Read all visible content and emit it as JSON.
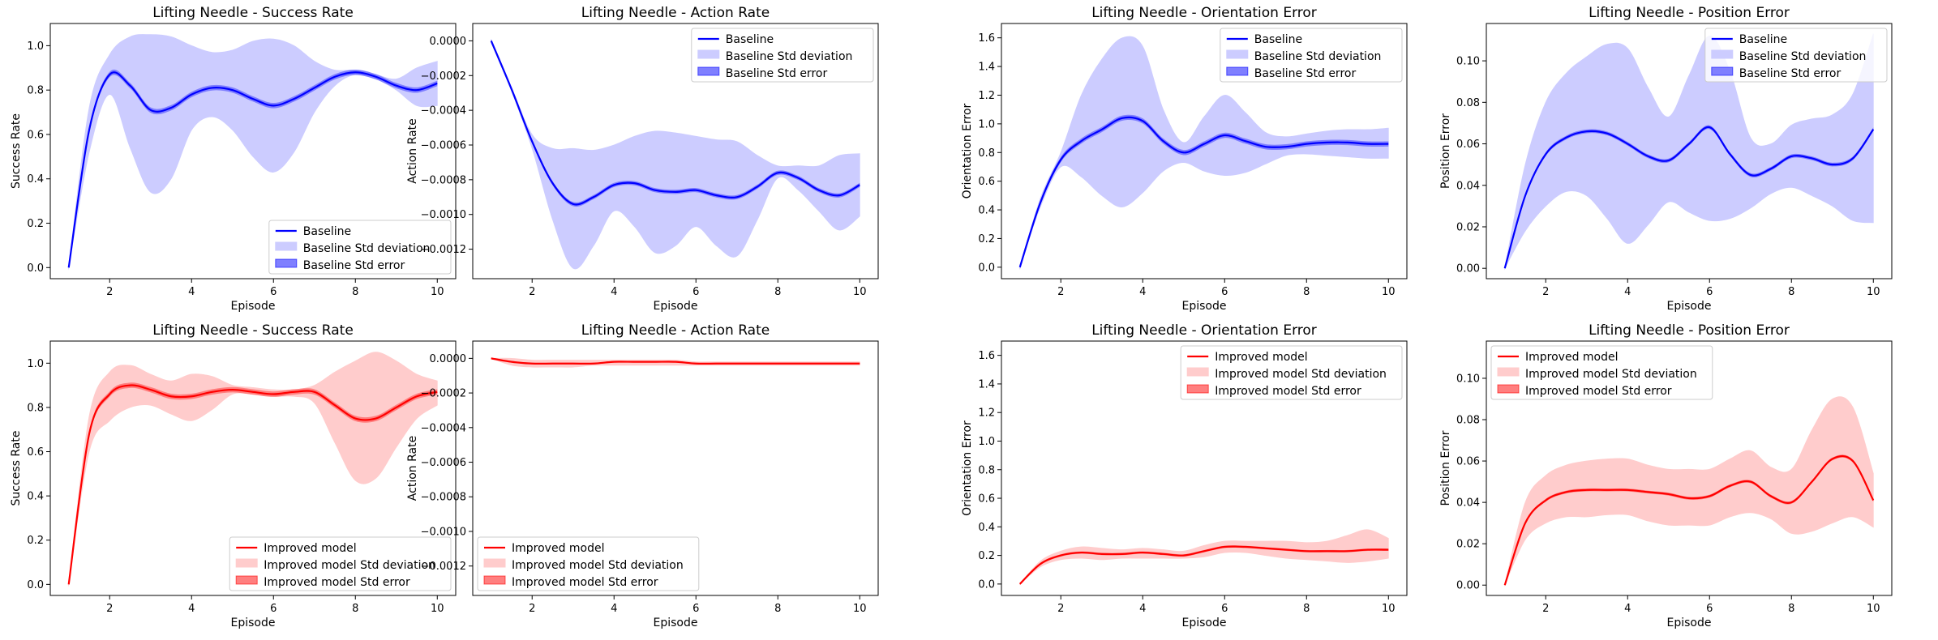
{
  "colors": {
    "baseline": "#0000ff",
    "baseline_std_dev": "#ccccff",
    "baseline_std_err": "#7f7fff",
    "improved": "#ff0000",
    "improved_std_dev": "#ffcccc",
    "improved_std_err": "#ff7f7f"
  },
  "chart_data": [
    {
      "type": "line",
      "panel": "top-1",
      "title": "Lifting Needle - Success Rate",
      "xlabel": "Episode",
      "ylabel": "Success Rate",
      "xlim": [
        0.55,
        10.45
      ],
      "ylim": [
        -0.05,
        1.1
      ],
      "xticks": [
        2,
        4,
        6,
        8,
        10
      ],
      "xtick_labels": [
        "2",
        "4",
        "6",
        "8",
        "10"
      ],
      "yticks": [
        0,
        0.2,
        0.4,
        0.6,
        0.8,
        1.0
      ],
      "ytick_labels": [
        "0.0",
        "0.2",
        "0.4",
        "0.6",
        "0.8",
        "1.0"
      ],
      "color_key": "baseline",
      "legend_loc": "lower-right",
      "legend": [
        "Baseline",
        "Baseline Std deviation",
        "Baseline Std error"
      ],
      "x": [
        1,
        1.5,
        2,
        2.5,
        3,
        3.5,
        4,
        4.5,
        5,
        5.5,
        6,
        6.5,
        7,
        7.5,
        8,
        8.5,
        9,
        9.5,
        10
      ],
      "mean": [
        0.0,
        0.62,
        0.87,
        0.82,
        0.71,
        0.72,
        0.78,
        0.81,
        0.8,
        0.76,
        0.73,
        0.76,
        0.81,
        0.86,
        0.88,
        0.86,
        0.82,
        0.8,
        0.83
      ],
      "std_dev_lower": [
        0.0,
        0.52,
        0.78,
        0.54,
        0.34,
        0.4,
        0.62,
        0.68,
        0.62,
        0.5,
        0.43,
        0.52,
        0.7,
        0.82,
        0.87,
        0.85,
        0.8,
        0.73,
        0.73
      ],
      "std_dev_upper": [
        0.0,
        0.72,
        0.96,
        1.04,
        1.05,
        1.04,
        1.0,
        0.97,
        0.98,
        1.02,
        1.03,
        1.0,
        0.93,
        0.89,
        0.89,
        0.87,
        0.85,
        0.9,
        0.93
      ],
      "std_err": 0.012
    },
    {
      "type": "line",
      "panel": "top-2",
      "title": "Lifting Needle - Action Rate",
      "xlabel": "Episode",
      "ylabel": "Action Rate",
      "xlim": [
        0.55,
        10.45
      ],
      "ylim": [
        -0.00137,
        0.0001
      ],
      "xticks": [
        2,
        4,
        6,
        8,
        10
      ],
      "xtick_labels": [
        "2",
        "4",
        "6",
        "8",
        "10"
      ],
      "yticks": [
        0,
        -0.0002,
        -0.0004,
        -0.0006,
        -0.0008,
        -0.001,
        -0.0012
      ],
      "ytick_labels": [
        "0.0000",
        "−0.0002",
        "−0.0004",
        "−0.0006",
        "−0.0008",
        "−0.0010",
        "−0.0012"
      ],
      "color_key": "baseline",
      "legend_loc": "upper-right",
      "legend": [
        "Baseline",
        "Baseline Std deviation",
        "Baseline Std error"
      ],
      "x": [
        1,
        1.5,
        2,
        2.5,
        3,
        3.5,
        4,
        4.5,
        5,
        5.5,
        6,
        6.5,
        7,
        7.5,
        8,
        8.5,
        9,
        9.5,
        10
      ],
      "mean": [
        0.0,
        -0.00028,
        -0.00058,
        -0.00082,
        -0.00094,
        -0.0009,
        -0.00083,
        -0.00082,
        -0.00086,
        -0.00087,
        -0.00086,
        -0.00089,
        -0.0009,
        -0.00084,
        -0.00076,
        -0.00079,
        -0.00086,
        -0.00089,
        -0.00083
      ],
      "std_dev_lower": [
        0.0,
        -0.00029,
        -0.00062,
        -0.00103,
        -0.00131,
        -0.00118,
        -0.00098,
        -0.00107,
        -0.00122,
        -0.00118,
        -0.00107,
        -0.00118,
        -0.00124,
        -0.00103,
        -0.00079,
        -0.00086,
        -0.00098,
        -0.00109,
        -0.00101
      ],
      "std_dev_upper": [
        0.0,
        -0.00027,
        -0.00054,
        -0.00062,
        -0.00062,
        -0.00063,
        -0.0006,
        -0.00055,
        -0.00052,
        -0.00053,
        -0.00055,
        -0.00057,
        -0.00058,
        -0.00066,
        -0.00072,
        -0.00072,
        -0.00072,
        -0.00066,
        -0.00065
      ],
      "std_err": 1.2e-05
    },
    {
      "type": "line",
      "panel": "top-3",
      "title": "Lifting Needle - Orientation Error",
      "xlabel": "Episode",
      "ylabel": "Orientation Error",
      "xlim": [
        0.55,
        10.45
      ],
      "ylim": [
        -0.08,
        1.7
      ],
      "xticks": [
        2,
        4,
        6,
        8,
        10
      ],
      "xtick_labels": [
        "2",
        "4",
        "6",
        "8",
        "10"
      ],
      "yticks": [
        0,
        0.2,
        0.4,
        0.6,
        0.8,
        1.0,
        1.2,
        1.4,
        1.6
      ],
      "ytick_labels": [
        "0.0",
        "0.2",
        "0.4",
        "0.6",
        "0.8",
        "1.0",
        "1.2",
        "1.4",
        "1.6"
      ],
      "color_key": "baseline",
      "legend_loc": "upper-right",
      "legend": [
        "Baseline",
        "Baseline Std deviation",
        "Baseline Std error"
      ],
      "x": [
        1,
        1.5,
        2,
        2.5,
        3,
        3.5,
        4,
        4.5,
        5,
        5.5,
        6,
        6.5,
        7,
        7.5,
        8,
        8.5,
        9,
        9.5,
        10
      ],
      "mean": [
        0.0,
        0.45,
        0.75,
        0.88,
        0.96,
        1.04,
        1.02,
        0.88,
        0.8,
        0.86,
        0.92,
        0.88,
        0.84,
        0.84,
        0.86,
        0.87,
        0.87,
        0.86,
        0.86
      ],
      "std_dev_lower": [
        0.0,
        0.42,
        0.7,
        0.63,
        0.5,
        0.42,
        0.52,
        0.67,
        0.73,
        0.67,
        0.64,
        0.66,
        0.72,
        0.78,
        0.79,
        0.78,
        0.77,
        0.76,
        0.76
      ],
      "std_dev_upper": [
        0.0,
        0.48,
        0.8,
        1.2,
        1.45,
        1.6,
        1.54,
        1.1,
        0.87,
        1.05,
        1.2,
        1.08,
        0.94,
        0.91,
        0.93,
        0.95,
        0.96,
        0.96,
        0.97
      ],
      "std_err": 0.018
    },
    {
      "type": "line",
      "panel": "top-4",
      "title": "Lifting Needle - Position Error",
      "xlabel": "Episode",
      "ylabel": "Position Error",
      "xlim": [
        0.55,
        10.45
      ],
      "ylim": [
        -0.005,
        0.118
      ],
      "xticks": [
        2,
        4,
        6,
        8,
        10
      ],
      "xtick_labels": [
        "2",
        "4",
        "6",
        "8",
        "10"
      ],
      "yticks": [
        0,
        0.02,
        0.04,
        0.06,
        0.08,
        0.1
      ],
      "ytick_labels": [
        "0.00",
        "0.02",
        "0.04",
        "0.06",
        "0.08",
        "0.10"
      ],
      "color_key": "baseline",
      "legend_loc": "upper-right",
      "legend": [
        "Baseline",
        "Baseline Std deviation",
        "Baseline Std error"
      ],
      "x": [
        1,
        1.5,
        2,
        2.5,
        3,
        3.5,
        4,
        4.5,
        5,
        5.5,
        6,
        6.5,
        7,
        7.5,
        8,
        8.5,
        9,
        9.5,
        10
      ],
      "mean": [
        0.0,
        0.035,
        0.055,
        0.063,
        0.066,
        0.065,
        0.06,
        0.054,
        0.052,
        0.06,
        0.068,
        0.055,
        0.045,
        0.048,
        0.054,
        0.053,
        0.05,
        0.053,
        0.067
      ],
      "std_dev_lower": [
        0.0,
        0.018,
        0.03,
        0.037,
        0.035,
        0.024,
        0.012,
        0.021,
        0.032,
        0.027,
        0.023,
        0.024,
        0.029,
        0.036,
        0.039,
        0.035,
        0.03,
        0.023,
        0.022
      ],
      "std_dev_upper": [
        0.0,
        0.05,
        0.08,
        0.094,
        0.102,
        0.108,
        0.106,
        0.087,
        0.073,
        0.093,
        0.112,
        0.095,
        0.063,
        0.06,
        0.069,
        0.072,
        0.074,
        0.084,
        0.113
      ],
      "std_err": 0.0009
    },
    {
      "type": "line",
      "panel": "bottom-1",
      "title": "Lifting Needle - Success Rate",
      "xlabel": "Episode",
      "ylabel": "Success Rate",
      "xlim": [
        0.55,
        10.45
      ],
      "ylim": [
        -0.05,
        1.1
      ],
      "xticks": [
        2,
        4,
        6,
        8,
        10
      ],
      "xtick_labels": [
        "2",
        "4",
        "6",
        "8",
        "10"
      ],
      "yticks": [
        0,
        0.2,
        0.4,
        0.6,
        0.8,
        1.0
      ],
      "ytick_labels": [
        "0.0",
        "0.2",
        "0.4",
        "0.6",
        "0.8",
        "1.0"
      ],
      "color_key": "improved",
      "legend_loc": "lower-right",
      "legend": [
        "Improved model",
        "Improved model Std deviation",
        "Improved model Std error"
      ],
      "x": [
        1,
        1.5,
        2,
        2.5,
        3,
        3.5,
        4,
        4.5,
        5,
        5.5,
        6,
        6.5,
        7,
        7.5,
        8,
        8.5,
        9,
        9.5,
        10
      ],
      "mean": [
        0.0,
        0.68,
        0.86,
        0.9,
        0.88,
        0.85,
        0.85,
        0.87,
        0.88,
        0.87,
        0.86,
        0.87,
        0.87,
        0.81,
        0.75,
        0.75,
        0.8,
        0.85,
        0.87
      ],
      "std_dev_lower": [
        0.0,
        0.6,
        0.74,
        0.8,
        0.81,
        0.77,
        0.74,
        0.79,
        0.86,
        0.86,
        0.85,
        0.85,
        0.82,
        0.64,
        0.47,
        0.48,
        0.62,
        0.75,
        0.81
      ],
      "std_dev_upper": [
        0.0,
        0.76,
        0.96,
        0.99,
        0.95,
        0.92,
        0.95,
        0.94,
        0.9,
        0.89,
        0.88,
        0.88,
        0.9,
        0.96,
        1.01,
        1.05,
        1.01,
        0.95,
        0.92
      ],
      "std_err": 0.012
    },
    {
      "type": "line",
      "panel": "bottom-2",
      "title": "Lifting Needle - Action Rate",
      "xlabel": "Episode",
      "ylabel": "Action Rate",
      "xlim": [
        0.55,
        10.45
      ],
      "ylim": [
        -0.00137,
        0.0001
      ],
      "xticks": [
        2,
        4,
        6,
        8,
        10
      ],
      "xtick_labels": [
        "2",
        "4",
        "6",
        "8",
        "10"
      ],
      "yticks": [
        0,
        -0.0002,
        -0.0004,
        -0.0006,
        -0.0008,
        -0.001,
        -0.0012
      ],
      "ytick_labels": [
        "0.0000",
        "−0.0002",
        "−0.0004",
        "−0.0006",
        "−0.0008",
        "−0.0010",
        "−0.0012"
      ],
      "color_key": "improved",
      "legend_loc": "lower-left",
      "legend": [
        "Improved model",
        "Improved model Std deviation",
        "Improved model Std error"
      ],
      "x": [
        1,
        1.5,
        2,
        2.5,
        3,
        3.5,
        4,
        4.5,
        5,
        5.5,
        6,
        6.5,
        7,
        7.5,
        8,
        8.5,
        9,
        9.5,
        10
      ],
      "mean": [
        0.0,
        -2e-05,
        -3e-05,
        -3e-05,
        -3e-05,
        -3e-05,
        -2e-05,
        -2e-05,
        -2e-05,
        -2e-05,
        -3e-05,
        -3e-05,
        -3e-05,
        -3e-05,
        -3e-05,
        -3e-05,
        -3e-05,
        -3e-05,
        -3e-05
      ],
      "std_dev_lower": [
        0.0,
        -4e-05,
        -5e-05,
        -5e-05,
        -5e-05,
        -4e-05,
        -4e-05,
        -4e-05,
        -4e-05,
        -4e-05,
        -4e-05,
        -4e-05,
        -4e-05,
        -4e-05,
        -4e-05,
        -4e-05,
        -4e-05,
        -4e-05,
        -4e-05
      ],
      "std_dev_upper": [
        0.0,
        0.0,
        -1e-05,
        -1e-05,
        -1e-05,
        -1e-05,
        -1e-05,
        -1e-05,
        -1e-05,
        -1e-05,
        -2e-05,
        -2e-05,
        -2e-05,
        -2e-05,
        -2e-05,
        -2e-05,
        -2e-05,
        -2e-05,
        -2e-05
      ],
      "std_err": 4e-06
    },
    {
      "type": "line",
      "panel": "bottom-3",
      "title": "Lifting Needle - Orientation Error",
      "xlabel": "Episode",
      "ylabel": "Orientation Error",
      "xlim": [
        0.55,
        10.45
      ],
      "ylim": [
        -0.08,
        1.7
      ],
      "xticks": [
        2,
        4,
        6,
        8,
        10
      ],
      "xtick_labels": [
        "2",
        "4",
        "6",
        "8",
        "10"
      ],
      "yticks": [
        0,
        0.2,
        0.4,
        0.6,
        0.8,
        1.0,
        1.2,
        1.4,
        1.6
      ],
      "ytick_labels": [
        "0.0",
        "0.2",
        "0.4",
        "0.6",
        "0.8",
        "1.0",
        "1.2",
        "1.4",
        "1.6"
      ],
      "color_key": "improved",
      "legend_loc": "upper-right",
      "legend": [
        "Improved model",
        "Improved model Std deviation",
        "Improved model Std error"
      ],
      "x": [
        1,
        1.5,
        2,
        2.5,
        3,
        3.5,
        4,
        4.5,
        5,
        5.5,
        6,
        6.5,
        7,
        7.5,
        8,
        8.5,
        9,
        9.5,
        10
      ],
      "mean": [
        0.0,
        0.14,
        0.2,
        0.22,
        0.21,
        0.21,
        0.22,
        0.21,
        0.2,
        0.23,
        0.26,
        0.26,
        0.25,
        0.24,
        0.23,
        0.23,
        0.23,
        0.24,
        0.24
      ],
      "std_dev_lower": [
        0.0,
        0.12,
        0.17,
        0.18,
        0.17,
        0.18,
        0.18,
        0.18,
        0.18,
        0.19,
        0.22,
        0.22,
        0.2,
        0.18,
        0.17,
        0.16,
        0.15,
        0.16,
        0.18
      ],
      "std_dev_upper": [
        0.0,
        0.16,
        0.23,
        0.26,
        0.25,
        0.24,
        0.25,
        0.24,
        0.23,
        0.27,
        0.3,
        0.3,
        0.3,
        0.3,
        0.29,
        0.3,
        0.34,
        0.38,
        0.32
      ],
      "std_err": 0.008
    },
    {
      "type": "line",
      "panel": "bottom-4",
      "title": "Lifting Needle - Position Error",
      "xlabel": "Episode",
      "ylabel": "Position Error",
      "xlim": [
        0.55,
        10.45
      ],
      "ylim": [
        -0.005,
        0.118
      ],
      "xticks": [
        2,
        4,
        6,
        8,
        10
      ],
      "xtick_labels": [
        "2",
        "4",
        "6",
        "8",
        "10"
      ],
      "yticks": [
        0,
        0.02,
        0.04,
        0.06,
        0.08,
        0.1
      ],
      "ytick_labels": [
        "0.00",
        "0.02",
        "0.04",
        "0.06",
        "0.08",
        "0.10"
      ],
      "color_key": "improved",
      "legend_loc": "upper-left",
      "legend": [
        "Improved model",
        "Improved model Std deviation",
        "Improved model Std error"
      ],
      "x": [
        1,
        1.5,
        2,
        2.5,
        3,
        3.5,
        4,
        4.5,
        5,
        5.5,
        6,
        6.5,
        7,
        7.5,
        8,
        8.5,
        9,
        9.5,
        10
      ],
      "mean": [
        0.0,
        0.03,
        0.041,
        0.045,
        0.046,
        0.046,
        0.046,
        0.045,
        0.044,
        0.042,
        0.043,
        0.048,
        0.05,
        0.043,
        0.04,
        0.05,
        0.061,
        0.06,
        0.041
      ],
      "std_dev_lower": [
        0.0,
        0.022,
        0.03,
        0.033,
        0.033,
        0.034,
        0.034,
        0.031,
        0.029,
        0.029,
        0.029,
        0.033,
        0.035,
        0.032,
        0.025,
        0.026,
        0.03,
        0.033,
        0.028
      ],
      "std_dev_upper": [
        0.0,
        0.04,
        0.053,
        0.058,
        0.06,
        0.061,
        0.061,
        0.058,
        0.056,
        0.056,
        0.056,
        0.061,
        0.065,
        0.057,
        0.056,
        0.075,
        0.09,
        0.086,
        0.054
      ],
      "std_err": 0.0007
    }
  ]
}
